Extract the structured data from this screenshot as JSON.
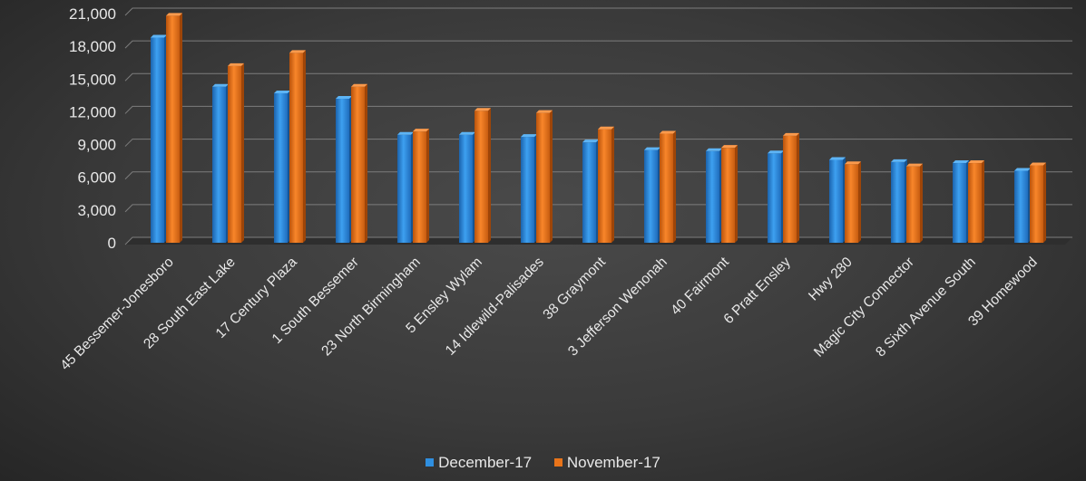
{
  "chart_data": {
    "type": "bar",
    "categories": [
      "45 Bessemer-Jonesboro",
      "28 South East Lake",
      "17 Century Plaza",
      "1 South Bessemer",
      "23 North Birmingham",
      "5 Ensley Wylam",
      "14 Idlewild-Palisades",
      "38 Graymont",
      "3 Jefferson Wenonah",
      "40 Fairmont",
      "6 Pratt Ensley",
      "Hwy 280",
      "Magic City Connector",
      "8 Sixth Avenue South",
      "39 Homewood"
    ],
    "series": [
      {
        "name": "December-17",
        "color": "#2f8fe0",
        "values": [
          18800,
          14300,
          13700,
          13200,
          9900,
          9900,
          9700,
          9200,
          8500,
          8400,
          8200,
          7600,
          7400,
          7300,
          6600
        ]
      },
      {
        "name": "November-17",
        "color": "#e9741a",
        "values": [
          20800,
          16200,
          17400,
          14300,
          10200,
          12100,
          11900,
          10400,
          10000,
          8700,
          9800,
          7200,
          7000,
          7300,
          7100
        ]
      }
    ],
    "ylim": [
      0,
      21000
    ],
    "yticks": [
      "0",
      "3,000",
      "6,000",
      "9,000",
      "12,000",
      "15,000",
      "18,000",
      "21,000"
    ],
    "grid": true,
    "legend_position": "bottom"
  }
}
